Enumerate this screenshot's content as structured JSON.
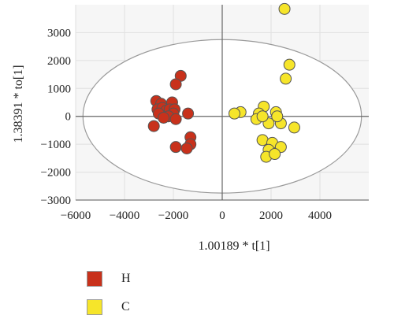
{
  "chart_data": {
    "type": "scatter",
    "xlabel": "1.00189 * t[1]",
    "ylabel": "1.38391 * to[1]",
    "xlim": [
      -6000,
      6000
    ],
    "ylim": [
      -3000,
      4000
    ],
    "x_ticks": [
      -6000,
      -4000,
      -2000,
      0,
      2000,
      4000
    ],
    "y_ticks": [
      3000,
      2000,
      1000,
      0,
      -1000,
      -2000,
      -3000
    ],
    "grid": true,
    "legend_position": "bottom-left",
    "ellipse": {
      "cx": 0,
      "cy": 0,
      "rx": 5700,
      "ry": 2750
    },
    "series": [
      {
        "name": "H",
        "color": "#c8311b",
        "points": [
          [
            -1700,
            1450
          ],
          [
            -1900,
            1150
          ],
          [
            -2700,
            550
          ],
          [
            -2500,
            450
          ],
          [
            -2050,
            500
          ],
          [
            -2650,
            250
          ],
          [
            -2450,
            300
          ],
          [
            -2300,
            200
          ],
          [
            -2150,
            250
          ],
          [
            -1950,
            250
          ],
          [
            -2000,
            100
          ],
          [
            -2600,
            100
          ],
          [
            -2200,
            0
          ],
          [
            -2400,
            -50
          ],
          [
            -1900,
            -100
          ],
          [
            -1400,
            100
          ],
          [
            -2800,
            -350
          ],
          [
            -1900,
            -1100
          ],
          [
            -1300,
            -750
          ],
          [
            -1300,
            -1000
          ],
          [
            -1450,
            -1150
          ]
        ]
      },
      {
        "name": "C",
        "color": "#f6e52a",
        "points": [
          [
            2550,
            3850
          ],
          [
            2750,
            1850
          ],
          [
            2600,
            1350
          ],
          [
            750,
            150
          ],
          [
            500,
            100
          ],
          [
            1700,
            350
          ],
          [
            2200,
            150
          ],
          [
            1500,
            100
          ],
          [
            1400,
            -100
          ],
          [
            1900,
            -250
          ],
          [
            2400,
            -250
          ],
          [
            1650,
            0
          ],
          [
            2250,
            0
          ],
          [
            2950,
            -400
          ],
          [
            1650,
            -850
          ],
          [
            2050,
            -950
          ],
          [
            2400,
            -1100
          ],
          [
            1900,
            -1200
          ],
          [
            1800,
            -1450
          ],
          [
            2150,
            -1350
          ]
        ]
      }
    ]
  }
}
